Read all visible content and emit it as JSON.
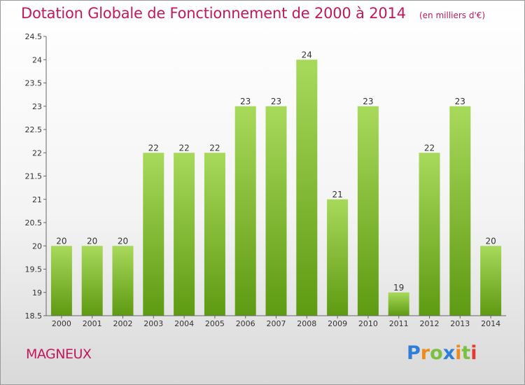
{
  "title": "Dotation Globale de Fonctionnement de 2000 à 2014",
  "unit_note": "(en milliers d'€)",
  "commune": "MAGNEUX",
  "logo": {
    "letters": [
      "P",
      "r",
      "o",
      "x",
      "i",
      "t",
      "i"
    ],
    "colors": [
      "#2f7fd6",
      "#f08a1c",
      "#7bc043",
      "#2f7fd6",
      "#f08a1c",
      "#7bc043",
      "#e53935"
    ]
  },
  "chart_data": {
    "type": "bar",
    "categories": [
      "2000",
      "2001",
      "2002",
      "2003",
      "2004",
      "2005",
      "2006",
      "2007",
      "2008",
      "2009",
      "2010",
      "2011",
      "2012",
      "2013",
      "2014"
    ],
    "values": [
      20,
      20,
      20,
      22,
      22,
      22,
      23,
      23,
      24,
      21,
      23,
      19,
      22,
      23,
      20
    ],
    "data_labels": [
      "20",
      "20",
      "20",
      "22",
      "22",
      "22",
      "23",
      "23",
      "24",
      "21",
      "23",
      "19",
      "22",
      "23",
      "20"
    ],
    "ylim": [
      18.5,
      24.5
    ],
    "yticks": [
      "18.5",
      "19",
      "19.5",
      "20",
      "20.5",
      "21",
      "21.5",
      "22",
      "22.5",
      "23",
      "23.5",
      "24",
      "24.5"
    ],
    "grid": false,
    "colors": {
      "bar_light": "#a8d95b",
      "bar_dark": "#5e9a12",
      "axis": "#666666"
    }
  }
}
